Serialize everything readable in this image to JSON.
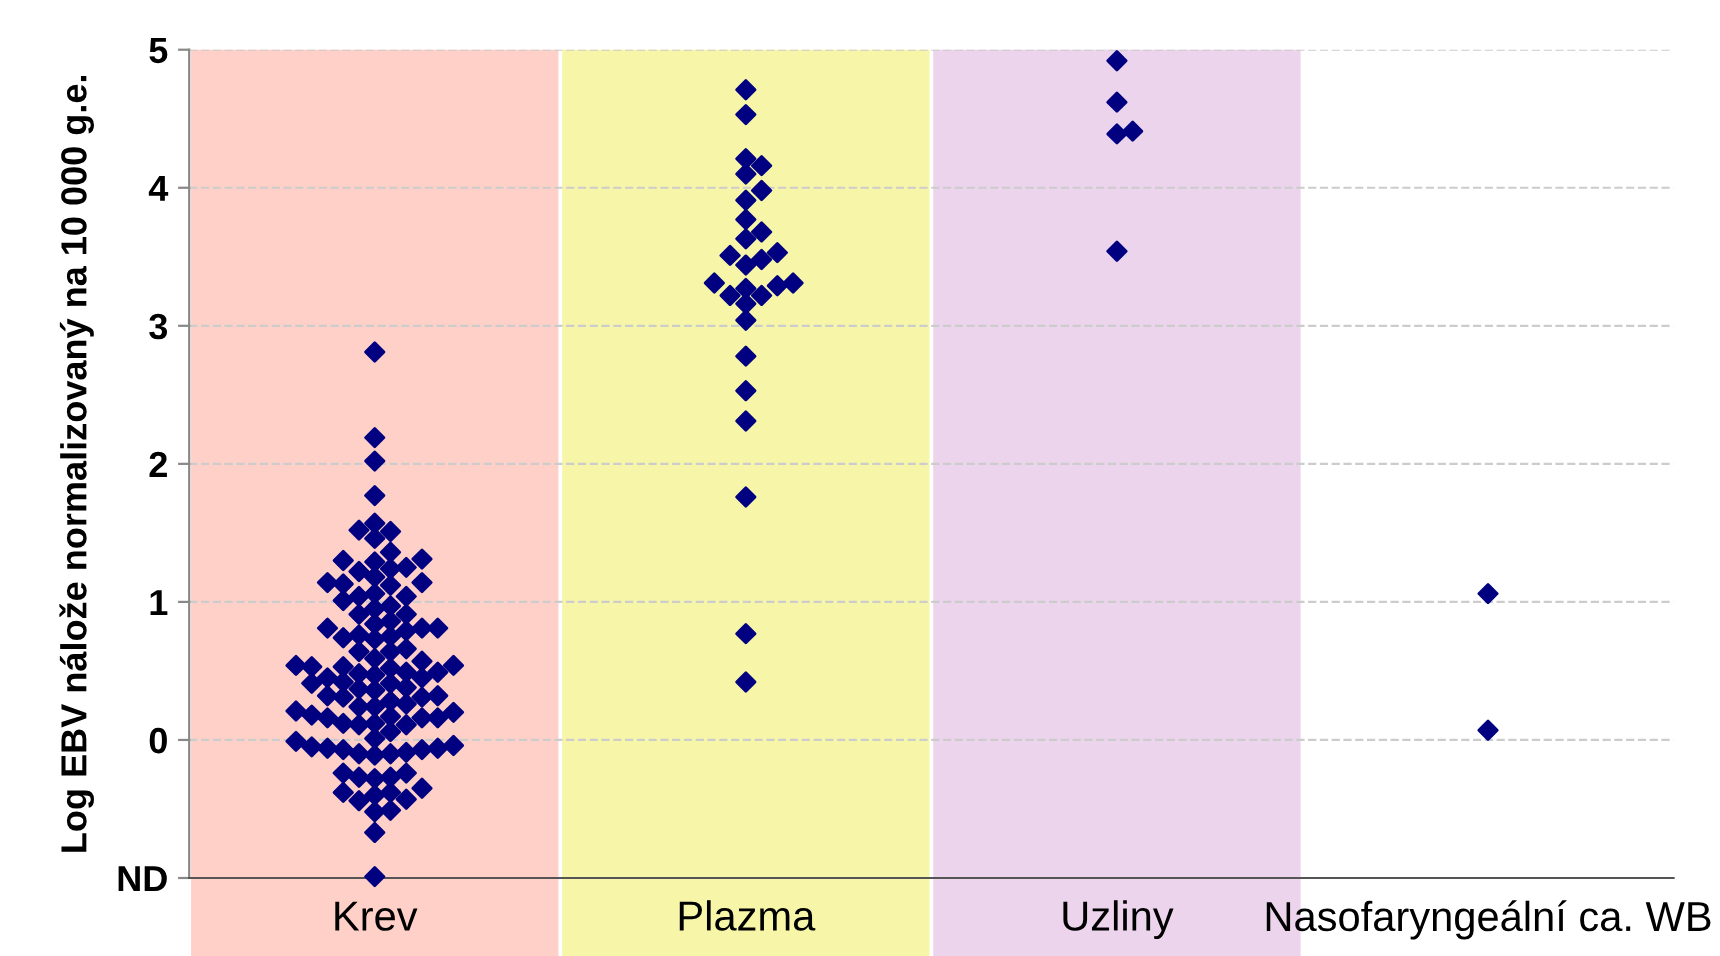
{
  "chart_data": {
    "type": "scatter",
    "ylabel": "Log EBV nálože normalizovaný na 10 000 g.e.",
    "categories": [
      "Krev",
      "Plazma",
      "Uzliny",
      "Nasofaryngeální ca. WB"
    ],
    "ylim": [
      -1,
      5
    ],
    "yticks": [
      {
        "value": -1,
        "label": "ND"
      },
      0,
      1,
      2,
      3,
      4,
      5
    ],
    "grid": "y",
    "line_style": "dashed",
    "marker": "diamond",
    "bands": [
      {
        "axis": "x",
        "from": "Krev",
        "to": "Krev",
        "color": "#ffd0c8"
      },
      {
        "axis": "x",
        "from": "Plazma",
        "to": "Plazma",
        "color": "#f7f6a8"
      },
      {
        "axis": "x",
        "from": "Uzliny",
        "to": "Uzliny",
        "color": "#ecd4ec"
      }
    ],
    "series": [
      {
        "color": "#000080",
        "x": [
          "Krev",
          "Krev",
          "Krev",
          "Krev",
          "Krev",
          "Krev",
          "Krev",
          "Krev",
          "Krev",
          "Krev",
          "Krev",
          "Krev",
          "Krev",
          "Krev",
          "Krev",
          "Krev",
          "Krev",
          "Krev",
          "Krev",
          "Krev",
          "Krev",
          "Krev",
          "Krev",
          "Krev",
          "Krev",
          "Krev",
          "Krev",
          "Krev",
          "Krev",
          "Krev",
          "Krev",
          "Krev",
          "Krev",
          "Krev",
          "Krev",
          "Krev",
          "Krev",
          "Krev",
          "Krev",
          "Krev",
          "Krev",
          "Krev",
          "Krev",
          "Krev",
          "Krev",
          "Krev",
          "Krev",
          "Krev",
          "Krev",
          "Krev",
          "Krev",
          "Krev",
          "Krev",
          "Krev",
          "Krev",
          "Krev",
          "Krev",
          "Krev",
          "Krev",
          "Krev",
          "Krev",
          "Krev",
          "Krev",
          "Krev",
          "Krev",
          "Krev",
          "Krev",
          "Krev",
          "Krev",
          "Krev",
          "Krev",
          "Krev",
          "Krev",
          "Krev",
          "Krev",
          "Krev",
          "Krev",
          "Krev",
          "Krev",
          "Krev",
          "Krev",
          "Krev",
          "Krev",
          "Krev",
          "Krev",
          "Krev",
          "Krev",
          "Krev",
          "Krev",
          "Krev",
          "Krev",
          "Krev",
          "Krev",
          "Krev",
          "Krev",
          "Krev",
          "Krev",
          "Krev",
          "Krev",
          "Krev",
          "Krev",
          "Krev",
          "Krev",
          "Krev",
          "Krev",
          "Krev",
          "Krev"
        ],
        "values": [
          0.49,
          0.37,
          0.24,
          0.12,
          -0.06,
          -0.27,
          -0.51,
          1.22,
          0.76,
          0.53,
          0.41,
          0.26,
          0.16,
          -0.05,
          -0.24,
          -0.43,
          1.25,
          1.12,
          0.84,
          0.66,
          0.53,
          0.41,
          0.28,
          0.16,
          -0.04,
          -0.11,
          -0.4,
          1.52,
          1.36,
          1.29,
          1.14,
          1.04,
          0.97,
          0.91,
          0.81,
          0.74,
          0.59,
          0.54,
          0.45,
          0.31,
          0.18,
          0.06,
          -0.09,
          -0.35,
          2.81,
          2.19,
          2.02,
          1.77,
          1.57,
          1.46,
          1.3,
          1.14,
          1.04,
          0.95,
          0.86,
          0.81,
          0.75,
          0.57,
          0.47,
          0.32,
          0.2,
          0.11,
          -0.1,
          -0.28,
          -0.67,
          -0.99,
          1.51,
          1.31,
          1.13,
          1.01,
          0.91,
          0.79,
          0.64,
          0.54,
          0.45,
          0.32,
          0.17,
          0.01,
          -0.1,
          -0.38,
          1.24,
          1.06,
          0.81,
          0.64,
          0.52,
          0.42,
          0.31,
          0.16,
          -0.01,
          -0.07,
          -0.38,
          1.18,
          0.73,
          0.49,
          0.38,
          0.24,
          0.12,
          -0.06,
          -0.24,
          -0.44,
          0.48,
          0.36,
          0.21,
          0.11,
          -0.07,
          -0.27,
          -0.52
        ]
      },
      {
        "color": "#000080",
        "x": [
          "Plazma",
          "Plazma",
          "Plazma",
          "Plazma",
          "Plazma",
          "Plazma",
          "Plazma",
          "Plazma",
          "Plazma",
          "Plazma",
          "Plazma",
          "Plazma",
          "Plazma",
          "Plazma",
          "Plazma",
          "Plazma",
          "Plazma",
          "Plazma",
          "Plazma",
          "Plazma",
          "Plazma",
          "Plazma",
          "Plazma",
          "Plazma",
          "Plazma",
          "Plazma",
          "Plazma",
          "Plazma"
        ],
        "values": [
          4.71,
          4.53,
          4.1,
          4.16,
          4.21,
          3.98,
          3.91,
          3.77,
          3.68,
          3.63,
          3.44,
          3.53,
          3.51,
          3.48,
          3.29,
          3.22,
          3.16,
          3.27,
          3.31,
          3.22,
          3.31,
          3.04,
          2.78,
          2.53,
          2.31,
          1.76,
          0.77,
          0.42
        ]
      },
      {
        "color": "#000080",
        "x": [
          "Uzliny",
          "Uzliny",
          "Uzliny",
          "Uzliny",
          "Uzliny"
        ],
        "values": [
          4.92,
          4.62,
          4.41,
          4.39,
          3.54
        ]
      },
      {
        "color": "#000080",
        "x": [
          "Nasofaryngeální ca. WB",
          "Nasofaryngeální ca. WB"
        ],
        "values": [
          1.06,
          0.07
        ]
      }
    ]
  }
}
